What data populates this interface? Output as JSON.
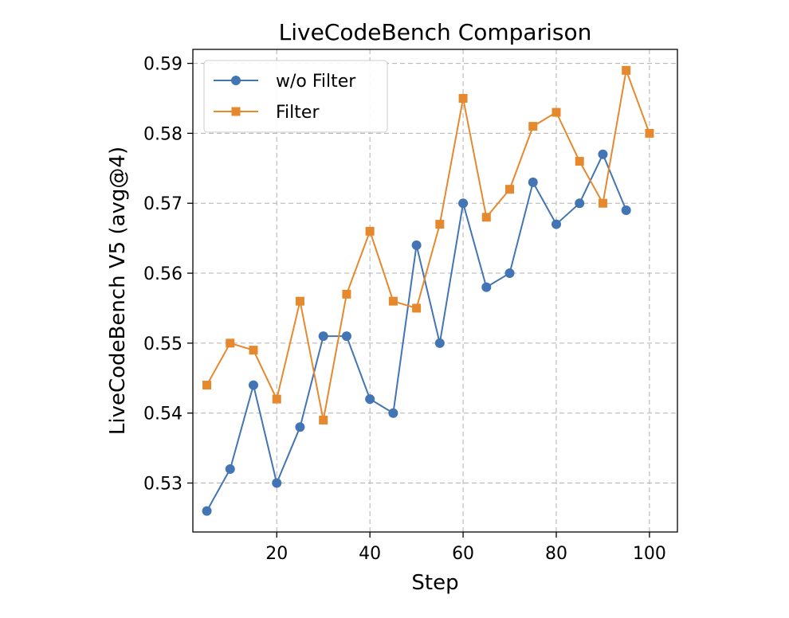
{
  "chart_data": {
    "type": "line",
    "title": "LiveCodeBench Comparison",
    "xlabel": "Step",
    "ylabel": "LiveCodeBench V5 (avg@4)",
    "xlim": [
      2,
      106
    ],
    "ylim": [
      0.523,
      0.592
    ],
    "xticks": [
      20,
      40,
      60,
      80,
      100
    ],
    "yticks": [
      0.53,
      0.54,
      0.55,
      0.56,
      0.57,
      0.58,
      0.59
    ],
    "xtick_labels": [
      "20",
      "40",
      "60",
      "80",
      "100"
    ],
    "ytick_labels": [
      "0.53",
      "0.54",
      "0.55",
      "0.56",
      "0.57",
      "0.58",
      "0.59"
    ],
    "grid": true,
    "legend_position": "top-left",
    "series": [
      {
        "name": "w/o Filter",
        "color": "#4374b3",
        "marker": "circle",
        "x": [
          5,
          10,
          15,
          20,
          25,
          30,
          35,
          40,
          45,
          50,
          55,
          60,
          65,
          70,
          75,
          80,
          85,
          90,
          95
        ],
        "values": [
          0.526,
          0.532,
          0.544,
          0.53,
          0.538,
          0.551,
          0.551,
          0.542,
          0.54,
          0.564,
          0.55,
          0.57,
          0.558,
          0.56,
          0.573,
          0.567,
          0.57,
          0.577,
          0.569
        ]
      },
      {
        "name": "Filter",
        "color": "#e6892e",
        "marker": "square",
        "x": [
          5,
          10,
          15,
          20,
          25,
          30,
          35,
          40,
          45,
          50,
          55,
          60,
          65,
          70,
          75,
          80,
          85,
          90,
          95,
          100
        ],
        "values": [
          0.544,
          0.55,
          0.549,
          0.542,
          0.556,
          0.539,
          0.557,
          0.566,
          0.556,
          0.555,
          0.567,
          0.585,
          0.568,
          0.572,
          0.581,
          0.583,
          0.576,
          0.57,
          0.589,
          0.58
        ]
      }
    ]
  }
}
